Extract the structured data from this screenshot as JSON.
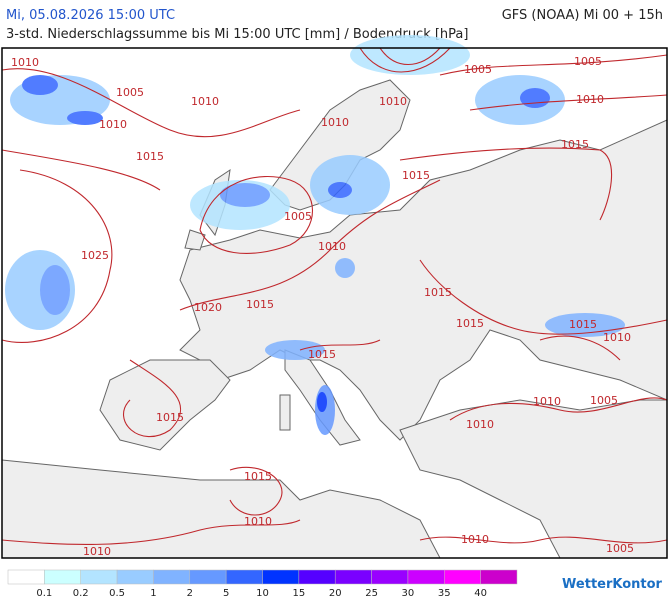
{
  "header": {
    "datetime": "Mi, 05.08.2026 15:00 UTC",
    "model": "GFS (NOAA) Mi 00 + 15h",
    "subtitle": "3-std. Niederschlagssumme bis Mi 15:00 UTC [mm] / Bodendruck [hPa]"
  },
  "isobar_labels": [
    "1010",
    "1005",
    "1010",
    "1010",
    "1015",
    "1025",
    "1020",
    "1015",
    "1005",
    "1010",
    "1010",
    "1010",
    "1005",
    "1005",
    "1010",
    "1015",
    "1015",
    "1015",
    "1015",
    "1015",
    "1010",
    "1015",
    "1015",
    "1010",
    "1005",
    "1010",
    "1015",
    "1010",
    "1010",
    "1010",
    "1005"
  ],
  "legend": {
    "labels": [
      "0.1",
      "0.2",
      "0.5",
      "1",
      "2",
      "5",
      "10",
      "15",
      "20",
      "25",
      "30",
      "35",
      "40"
    ],
    "colors": [
      "#ffffff",
      "#ccffff",
      "#b3e4ff",
      "#99ccff",
      "#80b3ff",
      "#6699ff",
      "#3366ff",
      "#0033ff",
      "#5500ff",
      "#7a00ff",
      "#9900ff",
      "#cc00ff",
      "#ff00ff",
      "#cc00cc"
    ]
  },
  "brand": "WetterKontor"
}
